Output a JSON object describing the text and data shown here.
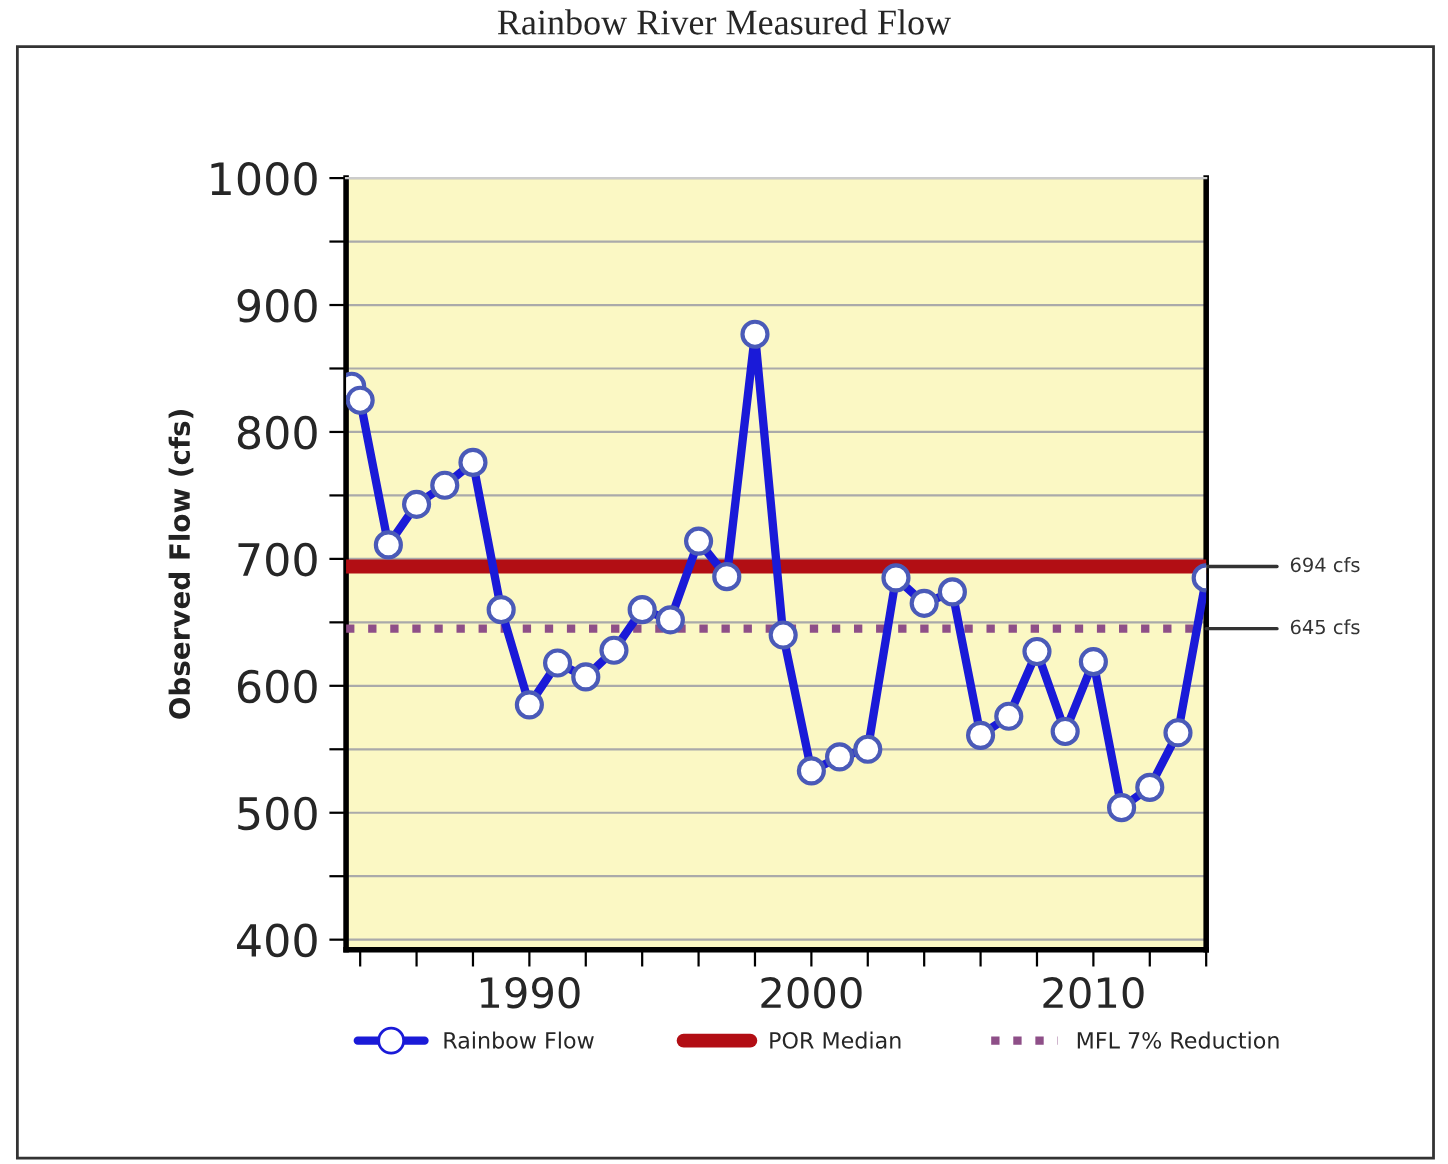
{
  "chart_data": {
    "type": "line",
    "title": "Rainbow River Measured Flow",
    "ylabel": "Observed Flow (cfs)",
    "x": [
      1983.7,
      1984,
      1985,
      1986,
      1987,
      1988,
      1989,
      1990,
      1991,
      1992,
      1993,
      1994,
      1995,
      1996,
      1997,
      1998,
      1999,
      2000,
      2001,
      2002,
      2003,
      2004,
      2005,
      2006,
      2007,
      2008,
      2009,
      2010,
      2011,
      2012,
      2013,
      2014
    ],
    "series": [
      {
        "name": "Rainbow Flow",
        "color": "#1a1ad8",
        "values": [
          836,
          825,
          711,
          743,
          758,
          776,
          660,
          585,
          618,
          607,
          628,
          660,
          652,
          714,
          686,
          877,
          640,
          533,
          544,
          550,
          685,
          665,
          674,
          561,
          576,
          627,
          564,
          619,
          504,
          520,
          563,
          685
        ]
      }
    ],
    "marker": "circle",
    "line_style": "solid",
    "ref_lines": [
      {
        "axis": "y",
        "value": 694,
        "label": "POR Median",
        "color": "#b20e14",
        "line_style": "solid"
      },
      {
        "axis": "y",
        "value": 645,
        "label": "MFL 7% Reduction",
        "color": "#8e4f88",
        "line_style": "dotted"
      }
    ],
    "annotations": [
      {
        "text": "694 cfs",
        "x": 2014,
        "y": 694
      },
      {
        "text": "645 cfs",
        "x": 2014,
        "y": 645
      }
    ],
    "xlim": [
      1983.5,
      2014
    ],
    "xticks": [
      {
        "value": 1984,
        "label": null
      },
      {
        "value": 1986,
        "label": null
      },
      {
        "value": 1988,
        "label": null
      },
      1990,
      {
        "value": 1992,
        "label": null
      },
      {
        "value": 1994,
        "label": null
      },
      {
        "value": 1996,
        "label": null
      },
      {
        "value": 1998,
        "label": null
      },
      2000,
      {
        "value": 2002,
        "label": null
      },
      {
        "value": 2004,
        "label": null
      },
      {
        "value": 2006,
        "label": null
      },
      {
        "value": 2008,
        "label": null
      },
      2010,
      {
        "value": 2012,
        "label": null
      },
      {
        "value": 2014,
        "label": null
      }
    ],
    "ylim": [
      392,
      1000
    ],
    "yticks": [
      400,
      {
        "value": 450,
        "label": null
      },
      500,
      {
        "value": 550,
        "label": null
      },
      600,
      {
        "value": 650,
        "label": null
      },
      700,
      {
        "value": 750,
        "label": null
      },
      800,
      {
        "value": 850,
        "label": null
      },
      900,
      {
        "value": 950,
        "label": null
      },
      1000
    ],
    "grid": "y",
    "legend": "bottom"
  }
}
